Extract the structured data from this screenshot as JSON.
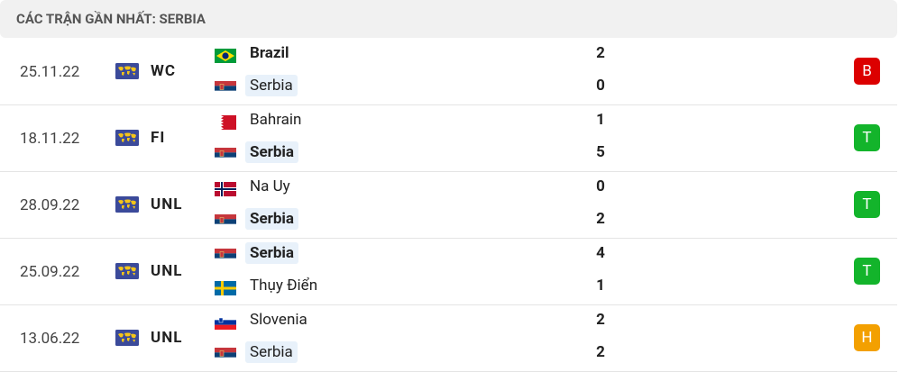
{
  "header": {
    "title": "CÁC TRẬN GẦN NHẤT: SERBIA"
  },
  "matches": [
    {
      "date": "25.11.22",
      "competition": "WC",
      "home": {
        "name": "Brazil",
        "score": 2
      },
      "away": {
        "name": "Serbia",
        "score": 0,
        "highlight": true
      },
      "result": {
        "label": "B",
        "color": "#dc0000"
      }
    },
    {
      "date": "18.11.22",
      "competition": "FI",
      "home": {
        "name": "Bahrain",
        "score": 1
      },
      "away": {
        "name": "Serbia",
        "score": 5,
        "highlight": true
      },
      "result": {
        "label": "T",
        "color": "#13b42b"
      }
    },
    {
      "date": "28.09.22",
      "competition": "UNL",
      "home": {
        "name": "Na Uy",
        "score": 0
      },
      "away": {
        "name": "Serbia",
        "score": 2,
        "highlight": true
      },
      "result": {
        "label": "T",
        "color": "#13b42b"
      }
    },
    {
      "date": "25.09.22",
      "competition": "UNL",
      "home": {
        "name": "Serbia",
        "score": 4,
        "highlight": true
      },
      "away": {
        "name": "Thụy Điển",
        "score": 1
      },
      "result": {
        "label": "T",
        "color": "#13b42b"
      }
    },
    {
      "date": "13.06.22",
      "competition": "UNL",
      "home": {
        "name": "Slovenia",
        "score": 2
      },
      "away": {
        "name": "Serbia",
        "score": 2,
        "highlight": true
      },
      "result": {
        "label": "H",
        "color": "#f3a000"
      }
    }
  ]
}
